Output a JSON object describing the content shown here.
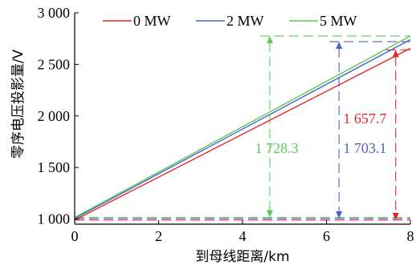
{
  "chart_data": {
    "type": "line",
    "xlabel": "到母线距离/km",
    "ylabel": "零序电压投影量/V",
    "xlim": [
      0,
      8
    ],
    "ylim": [
      950,
      3000
    ],
    "x_ticks": [
      0,
      2,
      4,
      6,
      8
    ],
    "y_ticks": [
      1000,
      1500,
      2000,
      2500,
      3000
    ],
    "x_tick_labels": [
      "0",
      "2",
      "4",
      "6",
      "8"
    ],
    "y_tick_labels": [
      "1 000",
      "1 500",
      "2 000",
      "2 500",
      "3 000"
    ],
    "grid": false,
    "legend": "top-center",
    "series": [
      {
        "name": "0 MW",
        "color": "#e8242c",
        "x": [
          0,
          8
        ],
        "y": [
          990,
          2655
        ]
      },
      {
        "name": "2 MW",
        "color": "#4b63c8",
        "x": [
          0,
          8
        ],
        "y": [
          1005,
          2740
        ]
      },
      {
        "name": "5 MW",
        "color": "#5cc95a",
        "x": [
          0,
          8
        ],
        "y": [
          1015,
          2775
        ]
      }
    ],
    "annotations": [
      {
        "series": "5 MW",
        "label": "1 728.3",
        "color": "#5cc95a",
        "x_line": 4.65,
        "y_low": 1015,
        "y_high": 2775,
        "x_label_value": 4.3,
        "y_label_value": 1640
      },
      {
        "series": "2 MW",
        "label": "1 703.1",
        "color": "#4b63c8",
        "x_line": 6.3,
        "y_low": 1005,
        "y_high": 2720,
        "x_label_value": 6.4,
        "y_label_value": 1640
      },
      {
        "series": "0 MW",
        "label": "1 657.7",
        "color": "#e8242c",
        "x_line": 7.65,
        "y_low": 990,
        "y_high": 2640,
        "x_label_value": 6.4,
        "y_label_value": 1930
      }
    ]
  }
}
